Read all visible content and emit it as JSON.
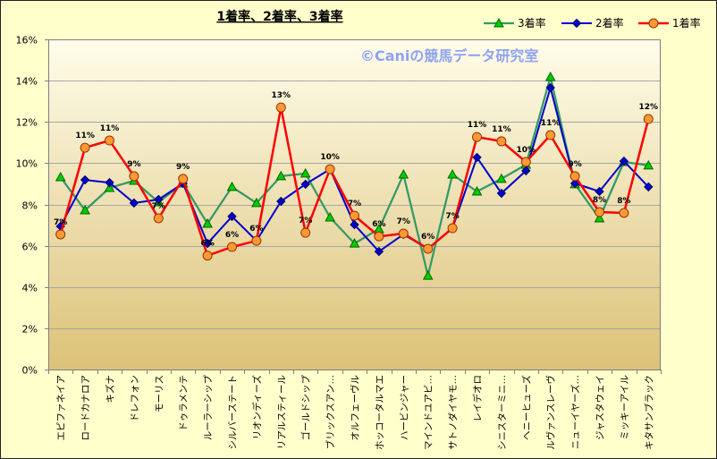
{
  "chart_data": {
    "type": "line",
    "title": "1着率、2着率、3着率",
    "categories": [
      "エピファネイア",
      "ロードカナロア",
      "キズナ",
      "ドレフォン",
      "モーリス",
      "ドゥラメンテ",
      "ルーラーシップ",
      "シルバーステート",
      "リオンディーズ",
      "リアルスティール",
      "ゴールドシップ",
      "ブリックスアン…",
      "オルフェーヴル",
      "ホッコータルマエ",
      "ハービンジャー",
      "マインドユアビ…",
      "サトノダイヤモ…",
      "レイデオロ",
      "シニスターミニ…",
      "ヘニーヒューズ",
      "ルヴァンスレーヴ",
      "ニューイヤーズ…",
      "ジャスタウェイ",
      "ミッキーアイル",
      "キタサンブラック"
    ],
    "ylim": [
      0,
      16
    ],
    "yticks": [
      0,
      2,
      4,
      6,
      8,
      10,
      12,
      14,
      16
    ],
    "ytick_labels": [
      "0%",
      "2%",
      "4%",
      "6%",
      "8%",
      "10%",
      "12%",
      "14%",
      "16%"
    ],
    "grid": true,
    "legend": "top-right",
    "series": [
      {
        "name": "3着率",
        "color": "#339966",
        "marker": "triangle",
        "marker_fill": "#00CC00",
        "marker_stroke": "#006600",
        "values": [
          9.32,
          7.72,
          8.8,
          9.15,
          8.11,
          9.02,
          7.07,
          8.85,
          8.07,
          9.37,
          9.5,
          7.37,
          6.11,
          6.81,
          9.45,
          4.55,
          9.45,
          8.63,
          9.24,
          9.93,
          14.18,
          8.98,
          7.33,
          10.06,
          9.89
        ]
      },
      {
        "name": "2着率",
        "color": "#0000CC",
        "marker": "diamond",
        "marker_fill": "#0000CC",
        "marker_stroke": "#000066",
        "values": [
          6.94,
          9.19,
          9.06,
          8.07,
          8.24,
          9.02,
          6.11,
          7.42,
          6.24,
          8.15,
          8.98,
          9.71,
          7.02,
          5.72,
          6.55,
          5.85,
          6.85,
          10.28,
          8.54,
          9.63,
          13.66,
          9.02,
          8.63,
          10.1,
          8.85
        ]
      },
      {
        "name": "1着率",
        "color": "#FF0000",
        "marker": "circle",
        "marker_fill": "#FF9933",
        "marker_stroke": "#993300",
        "values": [
          6.55,
          10.75,
          11.1,
          9.37,
          7.33,
          9.24,
          5.52,
          5.94,
          6.24,
          12.7,
          6.63,
          9.71,
          7.46,
          6.45,
          6.59,
          5.85,
          6.85,
          11.27,
          11.06,
          10.06,
          11.36,
          9.37,
          7.63,
          7.59,
          12.14
        ],
        "data_labels": [
          "7%",
          "11%",
          "11%",
          "9%",
          "7%",
          "9%",
          "6%",
          "6%",
          "6%",
          "13%",
          "7%",
          "10%",
          "7%",
          "6%",
          "7%",
          "6%",
          "7%",
          "11%",
          "11%",
          "10%",
          "11%",
          "9%",
          "8%",
          "8%",
          "12%"
        ]
      }
    ]
  },
  "watermark": "©Caniの競馬データ研究室",
  "colors": {
    "background": "#FFFFCC",
    "plot_top": "#FFFDEA",
    "plot_bottom": "#DCC278",
    "gridline": "#A6A6A6",
    "axis": "#7F7F7F",
    "watermark": "#8FA3F0",
    "border": "#222222"
  }
}
